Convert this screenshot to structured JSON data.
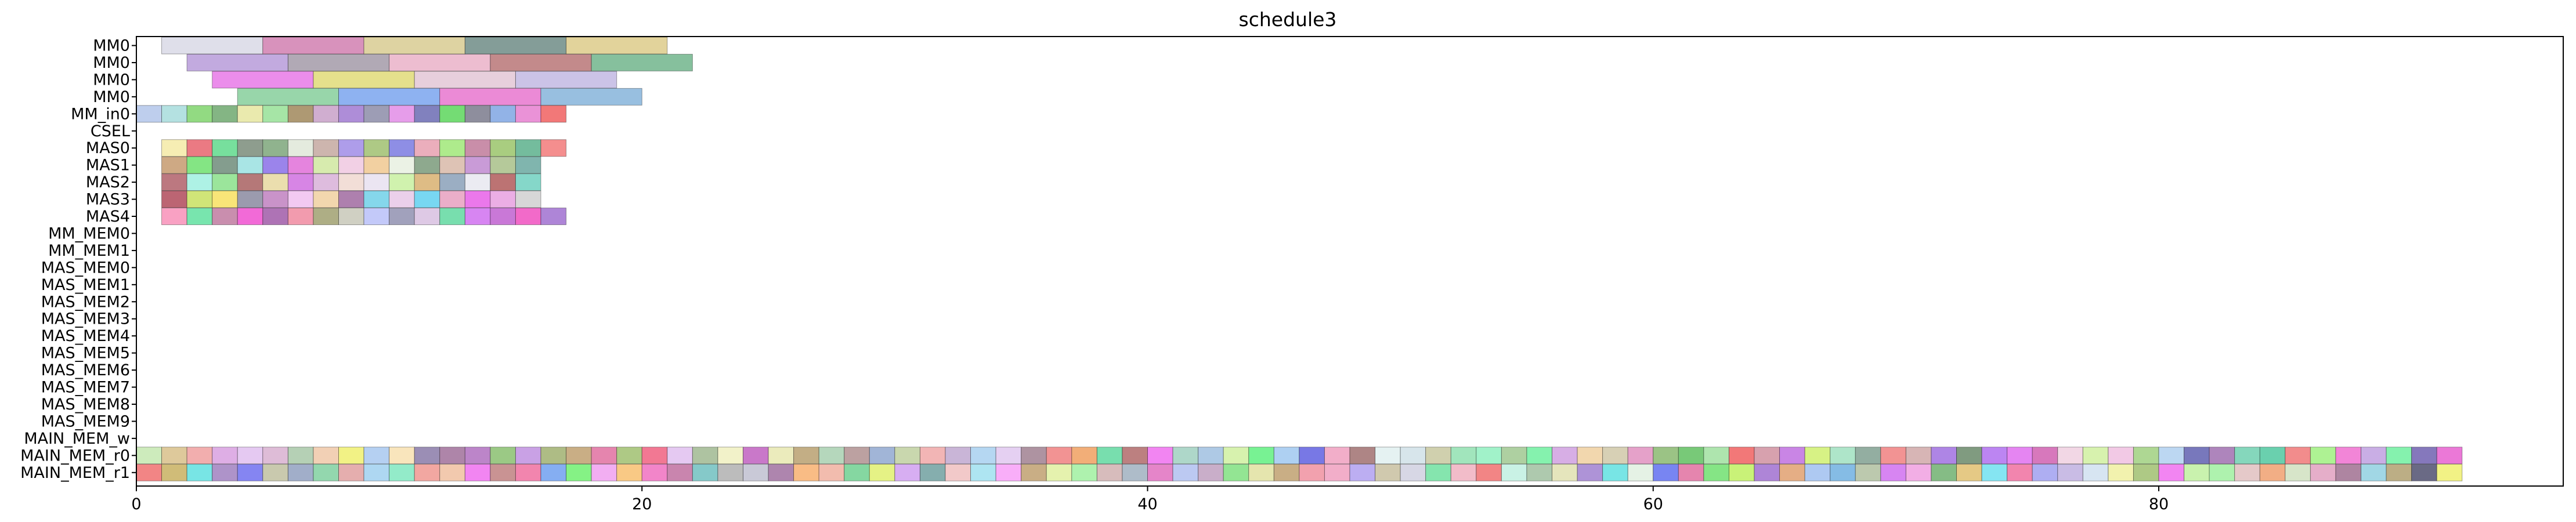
{
  "chart_data": {
    "type": "gantt",
    "title": "schedule3",
    "xlabel": "",
    "ylabel": "",
    "xlim": [
      0,
      96
    ],
    "x_ticks": [
      0,
      20,
      40,
      60,
      80
    ],
    "grid": false,
    "rows": [
      "MM0",
      "MM0",
      "MM0",
      "MM0",
      "MM_in0",
      "CSEL",
      "MAS0",
      "MAS1",
      "MAS2",
      "MAS3",
      "MAS4",
      "MM_MEM0",
      "MM_MEM1",
      "MAS_MEM0",
      "MAS_MEM1",
      "MAS_MEM2",
      "MAS_MEM3",
      "MAS_MEM4",
      "MAS_MEM5",
      "MAS_MEM6",
      "MAS_MEM7",
      "MAS_MEM8",
      "MAS_MEM9",
      "MAIN_MEM_w",
      "MAIN_MEM_r0",
      "MAIN_MEM_r1"
    ],
    "mm_tasks": [
      {
        "row": 0,
        "start": 1,
        "end": 5,
        "color": "#d9d9e6"
      },
      {
        "row": 0,
        "start": 5,
        "end": 9,
        "color": "#d17fb0"
      },
      {
        "row": 0,
        "start": 9,
        "end": 13,
        "color": "#d8cb92"
      },
      {
        "row": 0,
        "start": 13,
        "end": 17,
        "color": "#6e8c86"
      },
      {
        "row": 0,
        "start": 17,
        "end": 21,
        "color": "#ddcb8a"
      },
      {
        "row": 1,
        "start": 2,
        "end": 6,
        "color": "#b79bd9"
      },
      {
        "row": 1,
        "start": 6,
        "end": 10,
        "color": "#a39aa8"
      },
      {
        "row": 1,
        "start": 10,
        "end": 14,
        "color": "#eab1c8"
      },
      {
        "row": 1,
        "start": 14,
        "end": 18,
        "color": "#b97577"
      },
      {
        "row": 1,
        "start": 18,
        "end": 22,
        "color": "#71b58c"
      },
      {
        "row": 2,
        "start": 3,
        "end": 7,
        "color": "#e879e8"
      },
      {
        "row": 2,
        "start": 7,
        "end": 11,
        "color": "#e0da78"
      },
      {
        "row": 2,
        "start": 11,
        "end": 15,
        "color": "#e3c7d6"
      },
      {
        "row": 2,
        "start": 15,
        "end": 19,
        "color": "#c2b8e3"
      },
      {
        "row": 3,
        "start": 4,
        "end": 8,
        "color": "#86cf9b"
      },
      {
        "row": 3,
        "start": 8,
        "end": 12,
        "color": "#7aa5ee"
      },
      {
        "row": 3,
        "start": 12,
        "end": 16,
        "color": "#e875cf"
      },
      {
        "row": 3,
        "start": 16,
        "end": 20,
        "color": "#86b4da"
      }
    ],
    "unit_rows": [
      {
        "row": 4,
        "start": 0,
        "colors": [
          "#b3c6ea",
          "#a7dcdc",
          "#7fd46c",
          "#6fa86f",
          "#e6e6a0",
          "#96e096",
          "#a0875a",
          "#c8a0c8",
          "#a079d1",
          "#8c8ca8",
          "#e28ce6",
          "#6b6bb3",
          "#5cd65c",
          "#7a7a8c",
          "#7fa6e3",
          "#e67fd0",
          "#f06060"
        ]
      },
      {
        "row": 6,
        "start": 1,
        "colors": [
          "#f4eaa6",
          "#e8636d",
          "#5fd98c",
          "#7a8c7a",
          "#7da67a",
          "#dfe8d8",
          "#c4a8a0",
          "#a08ce6",
          "#a0c070",
          "#7a7ae0",
          "#e8a0b0",
          "#a0e878",
          "#c07a9a",
          "#9ac46a",
          "#5cb08c",
          "#f27a7a"
        ]
      },
      {
        "row": 7,
        "start": 1,
        "colors": [
          "#c69a6e",
          "#6fe06f",
          "#6f8c7a",
          "#9ae0e0",
          "#8a6fe8",
          "#e06fd8",
          "#d0e8a0",
          "#f0c8e0",
          "#f0c890",
          "#e8f0e0",
          "#7a9a7a",
          "#d8b8a8",
          "#c08ad0",
          "#a8c088",
          "#6aa8a0"
        ]
      },
      {
        "row": 8,
        "start": 1,
        "colors": [
          "#b0606a",
          "#a0f0e0",
          "#8ae08a",
          "#a86060",
          "#e8d8a0",
          "#d070e0",
          "#d8b0d8",
          "#f0d8d0",
          "#e8e0f0",
          "#c8f0a0",
          "#d8b070",
          "#8aa0b8",
          "#e8e8f0",
          "#b05a5a",
          "#70d0c0"
        ]
      },
      {
        "row": 9,
        "start": 1,
        "colors": [
          "#b04a5a",
          "#c8e060",
          "#f8e060",
          "#8a8aa0",
          "#c080c0",
          "#f0c0f0",
          "#f0d0a0",
          "#a06aa0",
          "#70d0e8",
          "#e8c8e8",
          "#60d0f0",
          "#e8a0c0",
          "#e860e8",
          "#e8a0e0",
          "#d0d0d0"
        ]
      },
      {
        "row": 10,
        "start": 1,
        "colors": [
          "#f890b8",
          "#60e0a0",
          "#c07aa0",
          "#f050d0",
          "#a05aa8",
          "#f08aa0",
          "#a0a070",
          "#c8c8b8",
          "#b8c0f8",
          "#9090b0",
          "#d8c0e0",
          "#60d8a0",
          "#d070f0",
          "#c060d0",
          "#f050c0",
          "#a070d0"
        ]
      },
      {
        "row": 24,
        "start": 0,
        "colors": [
          "#c4e8b0",
          "#d8c08a",
          "#f0a0a0",
          "#d8a0e0",
          "#e0c0f0",
          "#d8b0d0",
          "#a8c8a8",
          "#f0c8a8",
          "#f0f070",
          "#a8c8f0",
          "#f8e0b0",
          "#8a7aa8",
          "#a0709a",
          "#b070c0",
          "#8ac070",
          "#c090e0",
          "#a0b070",
          "#c0a070",
          "#e070a0",
          "#a0c070",
          "#f06080",
          "#e0c0f0",
          "#a0b890",
          "#f0f0c0",
          "#c060c0",
          "#e8e8b0",
          "#b8a070",
          "#a8d0b0",
          "#b09090",
          "#90a8d0",
          "#c0d0a0",
          "#f0a8a8",
          "#c0a8d0",
          "#a8d0f0",
          "#e0c8f0",
          "#a08090",
          "#f08080",
          "#f0a060",
          "#60d8a0",
          "#b06a6a",
          "#f070f0",
          "#a0d0c0",
          "#a0c0e0",
          "#d0f0a0",
          "#60f080",
          "#a0c8f0",
          "#6060e0",
          "#f0a0c0",
          "#a07070",
          "#e0f0f0",
          "#d0e0e8",
          "#c8c8a0",
          "#90e0b0",
          "#90f0c0",
          "#a0c890",
          "#70f0a0",
          "#d0a0e0",
          "#f0d0a0",
          "#d0c8a8",
          "#e090c0",
          "#8ab870",
          "#60c060",
          "#a0e0a0",
          "#f06060",
          "#d090a0",
          "#c070e0",
          "#d0f070",
          "#a0e0c0",
          "#80a090",
          "#f08080",
          "#d0a8a8",
          "#a070e0",
          "#6a8a6a",
          "#b070f0",
          "#e070f0",
          "#d060b0",
          "#f0d0e0",
          "#d0f0a0",
          "#f0c0e0",
          "#a0d080",
          "#b0d0f0",
          "#6060b0",
          "#a070b0",
          "#70d0b0",
          "#50c8a0",
          "#f07878",
          "#a0f080",
          "#f070d0",
          "#c0a0e0",
          "#70f0a0",
          "#7060b0",
          "#e860d0"
        ]
      },
      {
        "row": 25,
        "start": 0,
        "colors": [
          "#f07070",
          "#c8b060",
          "#60e0e0",
          "#a080c0",
          "#7070f0",
          "#c0c0a0",
          "#90a0c0",
          "#80d0a0",
          "#e0a0a0",
          "#a0d0f0",
          "#80e8c0",
          "#f09890",
          "#f0c0a0",
          "#f070f0",
          "#c08080",
          "#f070a0",
          "#70a0f0",
          "#70f070",
          "#f0a0f0",
          "#f8c070",
          "#f070c0",
          "#c070a0",
          "#70c0c0",
          "#b0b0b0",
          "#c0c0d0",
          "#a070a0",
          "#f8b070",
          "#f0b0a0",
          "#70d090",
          "#e0f070",
          "#d0a0f0",
          "#70a0a0",
          "#f0c0c0",
          "#a0e0f0",
          "#f8a0f8",
          "#c0a070",
          "#e0f0a0",
          "#a0f0a0",
          "#d0b0b0",
          "#a0b0c0",
          "#e070c0",
          "#b0c0f0",
          "#c0a0c0",
          "#80e080",
          "#e0e0a0",
          "#c0a070",
          "#f090a0",
          "#f0a0c0",
          "#b0a0f0",
          "#c8c0a0",
          "#d0d0e0",
          "#70e0a0",
          "#f0b0c0",
          "#f07070",
          "#c0f0e0",
          "#a0c0a0",
          "#e0e0b0",
          "#a080d0",
          "#60e0e0",
          "#e0f0e0",
          "#6070f0",
          "#e070a0",
          "#70e070",
          "#c0f060",
          "#a070d0",
          "#e0a070",
          "#a0c0f0",
          "#70b0e0",
          "#b0c0a0",
          "#d070f0",
          "#f0a0e0",
          "#70b070",
          "#e0c070",
          "#70e0f0",
          "#f070a0",
          "#a0a0f0",
          "#c0b0e0",
          "#d0e0f0",
          "#f0f0a0",
          "#a0c070",
          "#f070f0",
          "#c0f0a0",
          "#a0f0a0",
          "#e0c0c0",
          "#f0a070",
          "#d0e0c0",
          "#e0a0c0",
          "#a07090",
          "#90d0e0",
          "#b0a070",
          "#505070",
          "#f0f070"
        ]
      }
    ]
  }
}
